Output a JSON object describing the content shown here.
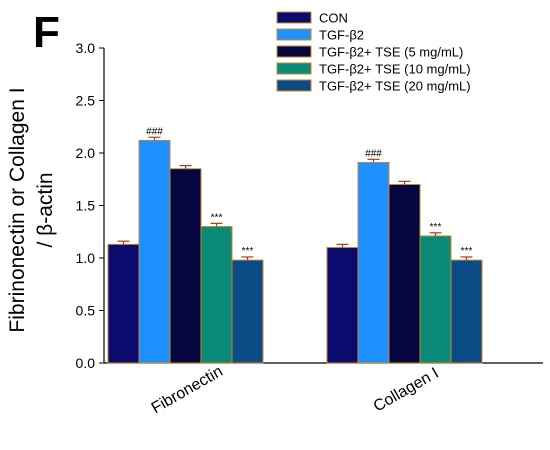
{
  "panel_label": "F",
  "colors": {
    "series": [
      "#0b0b6e",
      "#1e90ff",
      "#05053f",
      "#0b8a78",
      "#0a4a85"
    ],
    "bar_edge": "#c98a2c",
    "error_bar": "#b03a1a",
    "axis": "#000000"
  },
  "chart_data": {
    "type": "bar",
    "ylabel_line1": "Fibrinonectin or Collagen I",
    "ylabel_line2": "/ β-actin",
    "xlabel": "",
    "ylim": [
      0,
      3.0
    ],
    "yticks": [
      "0.0",
      "0.5",
      "1.0",
      "1.5",
      "2.0",
      "2.5",
      "3.0"
    ],
    "categories": [
      "Fibronectin",
      "Collagen I"
    ],
    "series": [
      {
        "name": "CON",
        "values": [
          1.13,
          1.1
        ],
        "errors": [
          0.03,
          0.03
        ],
        "annotations": [
          "",
          ""
        ]
      },
      {
        "name": "TGF-β2",
        "values": [
          2.12,
          1.91
        ],
        "errors": [
          0.03,
          0.03
        ],
        "annotations": [
          "###",
          "###"
        ]
      },
      {
        "name": "TGF-β2+ TSE (5 mg/mL)",
        "values": [
          1.85,
          1.7
        ],
        "errors": [
          0.03,
          0.03
        ],
        "annotations": [
          "",
          ""
        ]
      },
      {
        "name": "TGF-β2+ TSE (10 mg/mL)",
        "values": [
          1.3,
          1.21
        ],
        "errors": [
          0.03,
          0.03
        ],
        "annotations": [
          "***",
          "***"
        ]
      },
      {
        "name": "TGF-β2+ TSE (20 mg/mL)",
        "values": [
          0.98,
          0.98
        ],
        "errors": [
          0.03,
          0.03
        ],
        "annotations": [
          "***",
          "***"
        ]
      }
    ],
    "legend_position": "top-right"
  }
}
